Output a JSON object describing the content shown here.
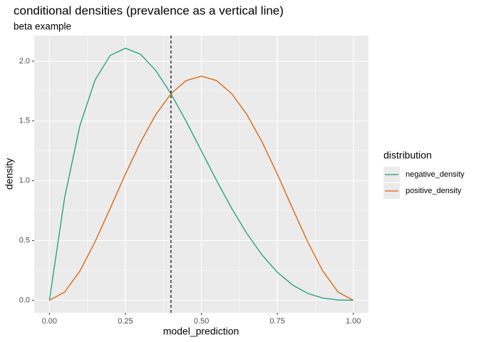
{
  "chart_data": {
    "type": "line",
    "title": "conditional densities (prevalence as a vertical line)",
    "subtitle": "beta example",
    "x_label": "model_prediction",
    "y_label": "density",
    "legend_title": "distribution",
    "x": [
      0,
      0.05,
      0.1,
      0.15,
      0.2,
      0.25,
      0.3,
      0.35,
      0.4,
      0.45,
      0.5,
      0.55,
      0.6,
      0.65,
      0.7,
      0.75,
      0.8,
      0.85,
      0.9,
      0.95,
      1
    ],
    "series": [
      {
        "name": "negative_density",
        "color": "#1b9e77",
        "values": [
          0,
          0.857,
          1.458,
          1.842,
          2.048,
          2.109,
          2.058,
          1.922,
          1.728,
          1.497,
          1.25,
          1.002,
          0.768,
          0.557,
          0.378,
          0.234,
          0.128,
          0.057,
          0.018,
          0.002,
          0
        ]
      },
      {
        "name": "positive_density",
        "color": "#d95f02",
        "values": [
          0,
          0.068,
          0.243,
          0.488,
          0.768,
          1.055,
          1.323,
          1.553,
          1.728,
          1.838,
          1.875,
          1.838,
          1.728,
          1.553,
          1.323,
          1.055,
          0.768,
          0.488,
          0.243,
          0.068,
          0
        ]
      }
    ],
    "vline": 0.4,
    "xlim": [
      -0.05,
      1.05
    ],
    "ylim": [
      -0.105,
      2.214
    ],
    "xticks": [
      {
        "value": 0,
        "label": "0.00"
      },
      0.25,
      {
        "value": 0.5,
        "label": "0.50"
      },
      0.75,
      {
        "value": 1,
        "label": "1.00"
      }
    ],
    "yticks": [
      {
        "value": 0,
        "label": "0.0"
      },
      0.5,
      {
        "value": 1,
        "label": "1.0"
      },
      1.5,
      {
        "value": 2,
        "label": "2.0"
      }
    ],
    "grid": true
  }
}
